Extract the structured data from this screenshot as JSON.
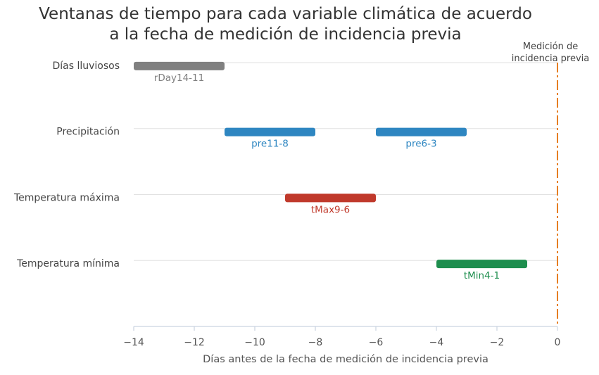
{
  "chart_data": {
    "type": "bar",
    "orientation": "horizontal-ranges",
    "title_lines": [
      "Ventanas de tiempo para cada variable climática de acuerdo",
      "a la fecha de medición de incidencia previa"
    ],
    "xlabel": "Días antes de la fecha de medición de incidencia previa",
    "xlim": [
      -14,
      0
    ],
    "xticks": [
      -14,
      -12,
      -10,
      -8,
      -6,
      -4,
      -2,
      0
    ],
    "xtick_labels": [
      "−14",
      "−12",
      "−10",
      "−8",
      "−6",
      "−4",
      "−2",
      "0"
    ],
    "categories": [
      "Días lluviosos",
      "Precipitación",
      "Temperatura máxima",
      "Temperatura mínima"
    ],
    "ranges": [
      {
        "category": "Días lluviosos",
        "label": "rDay14-11",
        "start": -14,
        "end": -11,
        "color": "#808080"
      },
      {
        "category": "Precipitación",
        "label": "pre11-8",
        "start": -11,
        "end": -8,
        "color": "#2e86c1"
      },
      {
        "category": "Precipitación",
        "label": "pre6-3",
        "start": -6,
        "end": -3,
        "color": "#2e86c1"
      },
      {
        "category": "Temperatura máxima",
        "label": "tMax9-6",
        "start": -9,
        "end": -6,
        "color": "#c0392b"
      },
      {
        "category": "Temperatura mínima",
        "label": "tMin4-1",
        "start": -4,
        "end": -1,
        "color": "#1e8e4e"
      }
    ],
    "reference_line": {
      "x": 0,
      "label_lines": [
        "Medición de",
        "incidencia previa"
      ],
      "color": "#e67e22",
      "style": "dash-dot"
    },
    "grid": true
  }
}
